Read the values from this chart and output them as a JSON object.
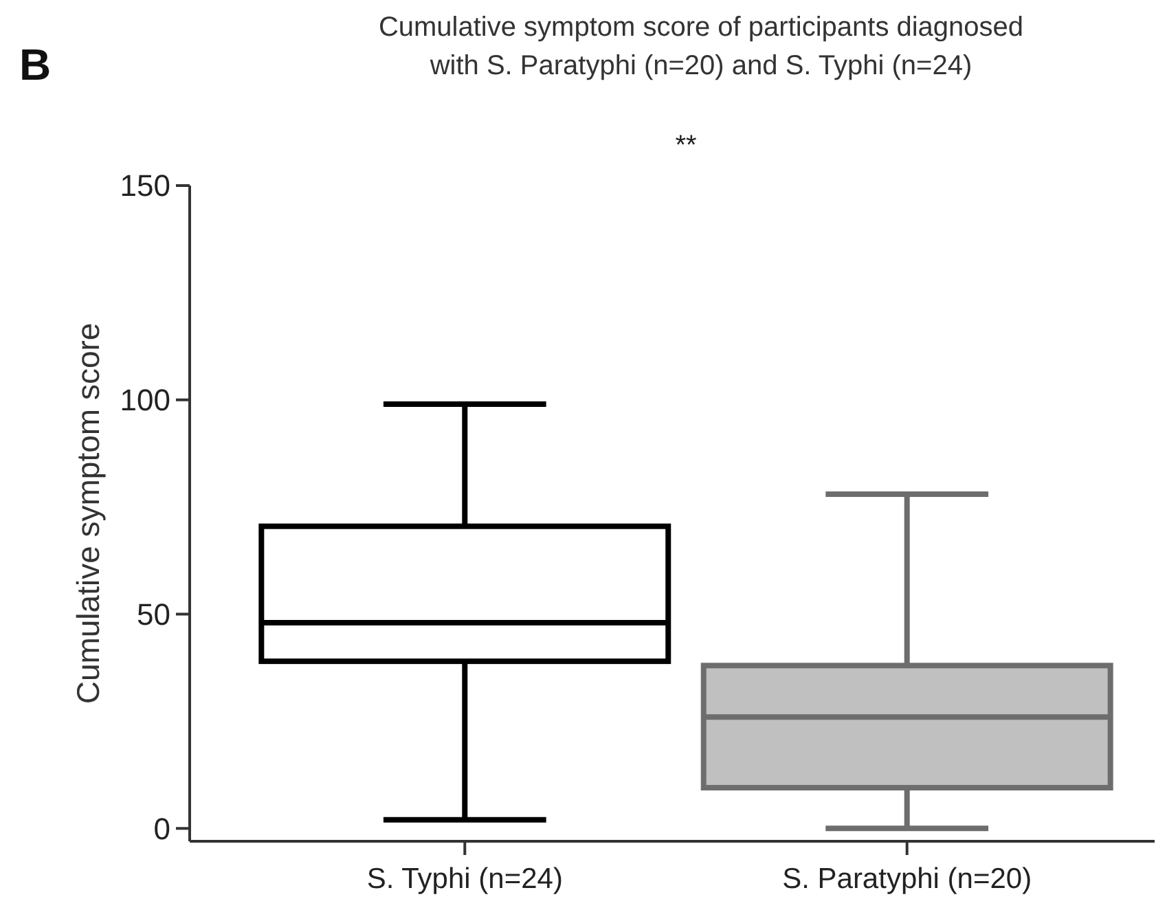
{
  "chart_data": {
    "type": "box",
    "title": "Cumulative symptom score of participants diagnosed with S. Paratyphi (n=20) and S. Typhi  (n=24)",
    "ylabel": "Cumulative symptom score",
    "categories": [
      "S. Typhi (n=24)",
      "S. Paratyphi (n=20)"
    ],
    "boxes": [
      {
        "low": 2,
        "q1": 39,
        "median": 48,
        "q3": 70.5,
        "high": 99
      },
      {
        "low": 0,
        "q1": 9.5,
        "median": 26,
        "q3": 38,
        "high": 78
      }
    ],
    "colors": [
      "#ffffff",
      "#c0c0c0"
    ],
    "ylim": [
      -3,
      150
    ],
    "yticks": [
      0,
      50,
      100,
      150
    ],
    "annotations": [
      "B",
      "**"
    ]
  }
}
